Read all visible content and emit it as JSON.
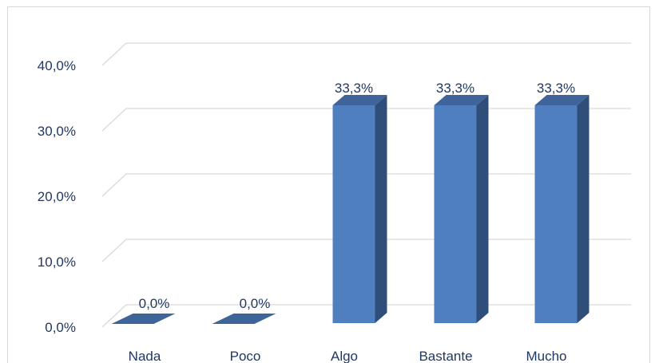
{
  "chart_data": {
    "type": "bar",
    "style": "3d-column",
    "categories": [
      "Nada",
      "Poco",
      "Algo",
      "Bastante",
      "Mucho"
    ],
    "values": [
      0.0,
      0.0,
      33.3,
      33.3,
      33.3
    ],
    "data_labels": [
      "0,0%",
      "0,0%",
      "33,3%",
      "33,3%",
      "33,3%"
    ],
    "y_ticks": [
      {
        "value": 0,
        "label": "0,0%"
      },
      {
        "value": 10,
        "label": "10,0%"
      },
      {
        "value": 20,
        "label": "20,0%"
      },
      {
        "value": 30,
        "label": "30,0%"
      },
      {
        "value": 40,
        "label": "40,0%"
      }
    ],
    "ylim": [
      0,
      40
    ],
    "title": "",
    "xlabel": "",
    "ylabel": "",
    "grid": true,
    "legend": "none",
    "colors": {
      "bar_front": "#4f7fbf",
      "bar_side": "#2f4f7a",
      "bar_top": "#3f6499",
      "gridline": "#d9d9d9",
      "text": "#1f3864"
    }
  }
}
